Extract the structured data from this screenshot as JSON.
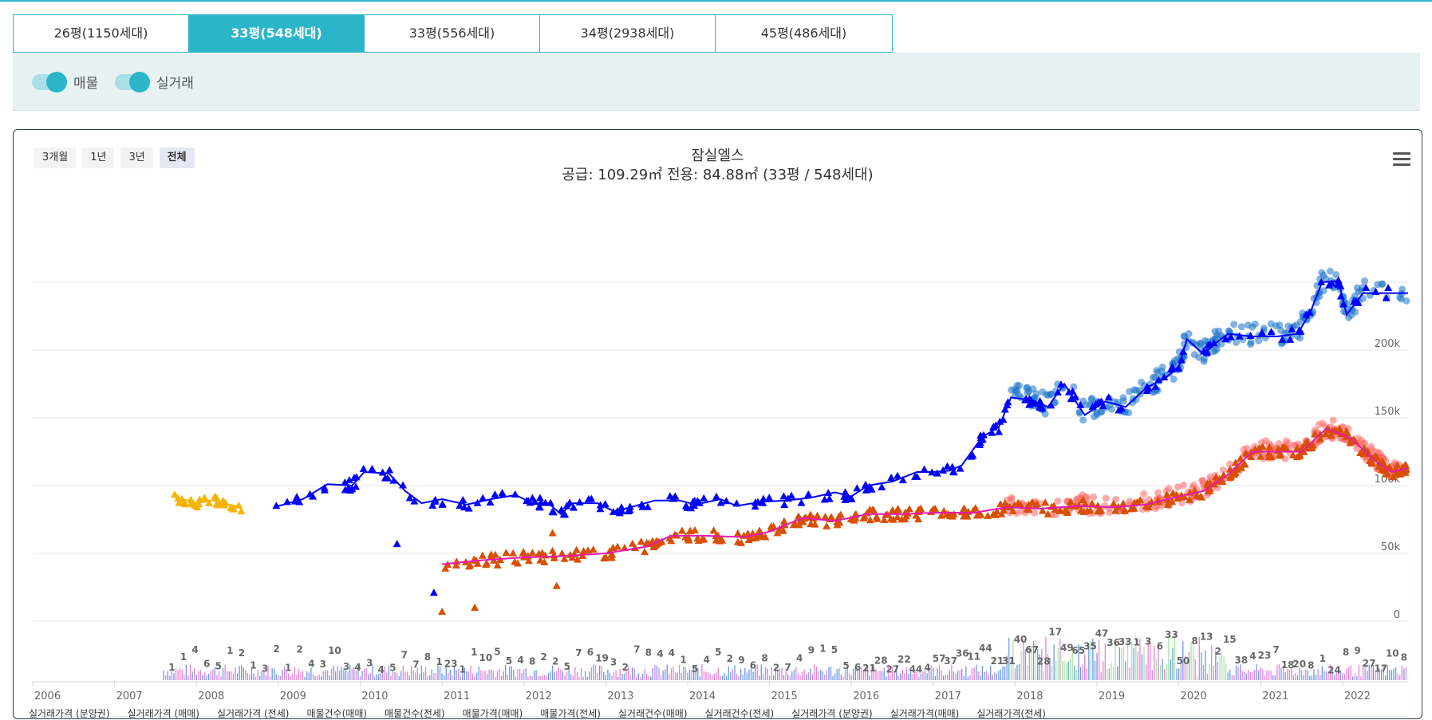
{
  "tabs": [
    {
      "label": "26평(1150세대)"
    },
    {
      "label": "33평(548세대)"
    },
    {
      "label": "33평(556세대)"
    },
    {
      "label": "34평(2938세대)"
    },
    {
      "label": "45평(486세대)"
    }
  ],
  "active_tab": 1,
  "toggles": [
    {
      "label": "매물",
      "on": true
    },
    {
      "label": "실거래",
      "on": true
    }
  ],
  "range_buttons": [
    {
      "label": "3개월"
    },
    {
      "label": "1년"
    },
    {
      "label": "3년"
    },
    {
      "label": "전체",
      "active": true
    }
  ],
  "colors": {
    "accent": "#2bb5c9",
    "sale": "#0000ff",
    "jeonse": "#d94f00",
    "presale": "#f5b400",
    "listing_sale": "#1a73c8",
    "listing_jeonse": "#ff6666",
    "count_sale": "#8fe08f",
    "count_jeonse": "#e066cc"
  },
  "chart_data": {
    "type": "line",
    "title": "잠실엘스",
    "subtitle": "공급: 109.29㎡ 전용: 84.88㎡ (33평 / 548세대)",
    "x_years": [
      "2006",
      "2007",
      "2008",
      "2009",
      "2010",
      "2011",
      "2012",
      "2013",
      "2014",
      "2015",
      "2016",
      "2017",
      "2018",
      "2019",
      "2020",
      "2021",
      "2022"
    ],
    "xlim": [
      2006.0,
      2022.8
    ],
    "y_ticks": [
      "0",
      "50k",
      "100k",
      "150k",
      "200k"
    ],
    "ylim": [
      0,
      250000
    ],
    "series": [
      {
        "name": "실거래가격 (분양권)",
        "type": "line",
        "color": "#f5b400",
        "points": [
          [
            2007.7,
            92000
          ],
          [
            2007.9,
            89000
          ],
          [
            2008.0,
            87000
          ],
          [
            2008.2,
            89000
          ],
          [
            2008.4,
            86000
          ],
          [
            2008.55,
            84000
          ]
        ]
      },
      {
        "name": "실거래가격 (매매)",
        "type": "line",
        "color": "#0000ff",
        "points": [
          [
            2008.95,
            84000
          ],
          [
            2009.3,
            90000
          ],
          [
            2009.6,
            101000
          ],
          [
            2009.9,
            100000
          ],
          [
            2010.05,
            110000
          ],
          [
            2010.35,
            109000
          ],
          [
            2010.55,
            96000
          ],
          [
            2010.75,
            87000
          ],
          [
            2011.0,
            90000
          ],
          [
            2011.3,
            86000
          ],
          [
            2011.6,
            90000
          ],
          [
            2011.9,
            93000
          ],
          [
            2012.1,
            87000
          ],
          [
            2012.3,
            87000
          ],
          [
            2012.45,
            79000
          ],
          [
            2012.6,
            87000
          ],
          [
            2012.9,
            87000
          ],
          [
            2013.1,
            81000
          ],
          [
            2013.3,
            84000
          ],
          [
            2013.6,
            89000
          ],
          [
            2013.9,
            89000
          ],
          [
            2014.1,
            86000
          ],
          [
            2014.4,
            90000
          ],
          [
            2014.6,
            85000
          ],
          [
            2014.9,
            88000
          ],
          [
            2015.2,
            89000
          ],
          [
            2015.5,
            91000
          ],
          [
            2015.8,
            95000
          ],
          [
            2016.0,
            92000
          ],
          [
            2016.2,
            100000
          ],
          [
            2016.5,
            103000
          ],
          [
            2016.8,
            110000
          ],
          [
            2017.0,
            110000
          ],
          [
            2017.2,
            111000
          ],
          [
            2017.35,
            115000
          ],
          [
            2017.6,
            136000
          ],
          [
            2017.8,
            143000
          ],
          [
            2017.95,
            165000
          ],
          [
            2018.2,
            163000
          ],
          [
            2018.4,
            158000
          ],
          [
            2018.6,
            175000
          ],
          [
            2018.85,
            152000
          ],
          [
            2019.1,
            162000
          ],
          [
            2019.35,
            158000
          ],
          [
            2019.6,
            172000
          ],
          [
            2019.85,
            180000
          ],
          [
            2020.0,
            188000
          ],
          [
            2020.1,
            208000
          ],
          [
            2020.3,
            197000
          ],
          [
            2020.45,
            205000
          ],
          [
            2020.6,
            212000
          ],
          [
            2020.9,
            210000
          ],
          [
            2021.2,
            210000
          ],
          [
            2021.45,
            212000
          ],
          [
            2021.6,
            227000
          ],
          [
            2021.75,
            250000
          ],
          [
            2021.95,
            251000
          ],
          [
            2022.05,
            226000
          ],
          [
            2022.25,
            242000
          ],
          [
            2022.8,
            242000
          ]
        ]
      },
      {
        "name": "실거래가격 (전세)",
        "type": "line",
        "color": "#e619b0",
        "points": [
          [
            2011.0,
            42000
          ],
          [
            2011.5,
            45000
          ],
          [
            2012.0,
            47000
          ],
          [
            2012.5,
            48000
          ],
          [
            2013.0,
            50000
          ],
          [
            2013.5,
            55000
          ],
          [
            2013.8,
            63000
          ],
          [
            2014.2,
            63000
          ],
          [
            2014.7,
            62000
          ],
          [
            2015.0,
            66000
          ],
          [
            2015.4,
            76000
          ],
          [
            2015.8,
            74000
          ],
          [
            2016.2,
            79000
          ],
          [
            2016.6,
            79000
          ],
          [
            2017.0,
            80000
          ],
          [
            2017.5,
            80000
          ],
          [
            2017.9,
            84000
          ],
          [
            2018.3,
            83000
          ],
          [
            2018.8,
            85000
          ],
          [
            2019.2,
            84000
          ],
          [
            2019.6,
            86000
          ],
          [
            2020.0,
            92000
          ],
          [
            2020.3,
            96000
          ],
          [
            2020.6,
            108000
          ],
          [
            2020.9,
            125000
          ],
          [
            2021.2,
            125000
          ],
          [
            2021.5,
            125000
          ],
          [
            2021.8,
            142000
          ],
          [
            2022.1,
            135000
          ],
          [
            2022.4,
            118000
          ],
          [
            2022.6,
            110000
          ],
          [
            2022.8,
            113000
          ]
        ]
      }
    ],
    "annotations": [
      "1",
      "1",
      "4",
      "6",
      "5",
      "1",
      "2",
      "1",
      "3",
      "2",
      "1",
      "2",
      "4",
      "3",
      "10",
      "3",
      "4",
      "3",
      "4",
      "5",
      "7",
      "7",
      "8",
      "1",
      "23",
      "1",
      "1",
      "10",
      "5",
      "5",
      "4",
      "8",
      "2",
      "2",
      "5",
      "7",
      "6",
      "19",
      "3",
      "2",
      "7",
      "8",
      "4",
      "4",
      "1",
      "5",
      "4",
      "5",
      "2",
      "9",
      "6",
      "8",
      "2",
      "7",
      "4",
      "9",
      "1",
      "5",
      "5",
      "6",
      "21",
      "28",
      "27",
      "22",
      "44",
      "4",
      "57",
      "37",
      "36",
      "11",
      "44",
      "21",
      "31",
      "40",
      "67",
      "28",
      "17",
      "49",
      "65",
      "35",
      "47",
      "36",
      "33",
      "1",
      "3",
      "6",
      "33",
      "50",
      "8",
      "13",
      "2",
      "15",
      "38",
      "4",
      "23",
      "7",
      "18",
      "20",
      "8",
      "1",
      "24",
      "8",
      "9",
      "27",
      "17",
      "10",
      "8"
    ]
  },
  "legend": [
    "실거래가격 (분양권)",
    "실거래가격 (매매)",
    "실거래가격 (전세)",
    "매물건수(매매)",
    "매물건수(전세)",
    "매물가격(매매)",
    "매물가격(전세)",
    "실거래건수(매매)",
    "실거래건수(전세)",
    "실거래가격 (분양권)",
    "실거래가격(매매)",
    "실거래가격(전세)"
  ]
}
